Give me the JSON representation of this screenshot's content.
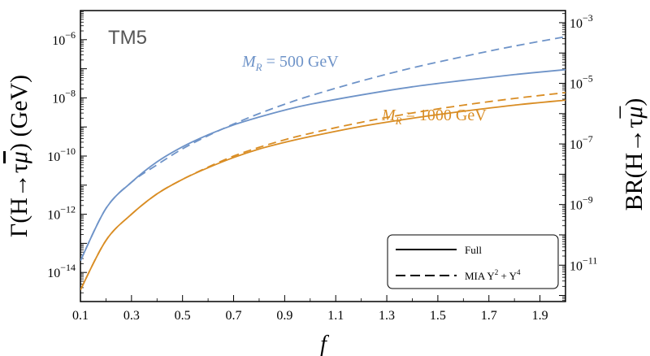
{
  "chart_data": {
    "type": "line",
    "tag": "TM5",
    "xlabel": "f",
    "ylabel_left": {
      "prefix": "Γ(H→τ",
      "bar": "μ",
      "suffix": ") (GeV)"
    },
    "ylabel_right": {
      "prefix": "BR(H→τ",
      "bar": "μ",
      "suffix": ")"
    },
    "x_ticks": [
      "0.1",
      "0.3",
      "0.5",
      "0.7",
      "0.9",
      "1.1",
      "1.3",
      "1.5",
      "1.7",
      "1.9"
    ],
    "xlim": [
      0.1,
      2.0
    ],
    "ylim_left_log10": [
      -15,
      -5
    ],
    "ylim_right_log10": [
      -12.2,
      -2.6
    ],
    "left_ticks": [
      {
        "exp": -6,
        "label": "10",
        "sup": "−6"
      },
      {
        "exp": -8,
        "label": "10",
        "sup": "−8"
      },
      {
        "exp": -10,
        "label": "10",
        "sup": "−10"
      },
      {
        "exp": -12,
        "label": "10",
        "sup": "−12"
      },
      {
        "exp": -14,
        "label": "10",
        "sup": "−14"
      }
    ],
    "right_ticks": [
      {
        "exp": -3,
        "label": "10",
        "sup": "−3"
      },
      {
        "exp": -5,
        "label": "10",
        "sup": "−5"
      },
      {
        "exp": -7,
        "label": "10",
        "sup": "−7"
      },
      {
        "exp": -9,
        "label": "10",
        "sup": "−9"
      },
      {
        "exp": -11,
        "label": "10",
        "sup": "−11"
      }
    ],
    "x": [
      0.1,
      0.2,
      0.3,
      0.4,
      0.5,
      0.6,
      0.7,
      0.8,
      0.9,
      1.0,
      1.2,
      1.4,
      1.6,
      1.8,
      2.0
    ],
    "series": [
      {
        "name": "M_R = 500 GeV, Full",
        "color": "#6e93c8",
        "dash": false,
        "log10_values": [
          -13.6,
          -11.8,
          -10.9,
          -10.2,
          -9.68,
          -9.27,
          -8.93,
          -8.66,
          -8.42,
          -8.22,
          -7.9,
          -7.62,
          -7.4,
          -7.2,
          -7.03
        ]
      },
      {
        "name": "M_R = 500 GeV, MIA Y^2 + Y^4",
        "color": "#6e93c8",
        "dash": true,
        "log10_values": [
          -13.6,
          -11.8,
          -10.9,
          -10.3,
          -9.75,
          -9.3,
          -8.9,
          -8.54,
          -8.22,
          -7.93,
          -7.42,
          -6.97,
          -6.58,
          -6.22,
          -5.9
        ]
      },
      {
        "name": "M_R = 1000 GeV, Full",
        "color": "#d98d24",
        "dash": false,
        "log10_values": [
          -14.6,
          -12.9,
          -12.0,
          -11.3,
          -10.8,
          -10.4,
          -10.05,
          -9.76,
          -9.53,
          -9.33,
          -8.98,
          -8.7,
          -8.46,
          -8.25,
          -8.08
        ]
      },
      {
        "name": "M_R = 1000 GeV, MIA Y^2 + Y^4",
        "color": "#d98d24",
        "dash": true,
        "log10_values": [
          -14.6,
          -12.9,
          -12.0,
          -11.3,
          -10.8,
          -10.38,
          -10.0,
          -9.7,
          -9.44,
          -9.22,
          -8.84,
          -8.52,
          -8.25,
          -8.02,
          -7.82
        ]
      }
    ],
    "annotations": [
      {
        "text_prefix": "M",
        "text_sub": "R",
        "text_suffix": " = 500 GeV",
        "color": "#6e93c8"
      },
      {
        "text_prefix": "M",
        "text_sub": "R",
        "text_suffix": " = 1000 GeV",
        "color": "#d98d24"
      }
    ],
    "legend": {
      "position": "bottom-right",
      "entries": [
        {
          "label": "Full",
          "dash": false
        },
        {
          "label_prefix": "MIA Y",
          "sup1": "2",
          "label_mid": " + Y",
          "sup2": "4",
          "dash": true
        }
      ]
    }
  }
}
